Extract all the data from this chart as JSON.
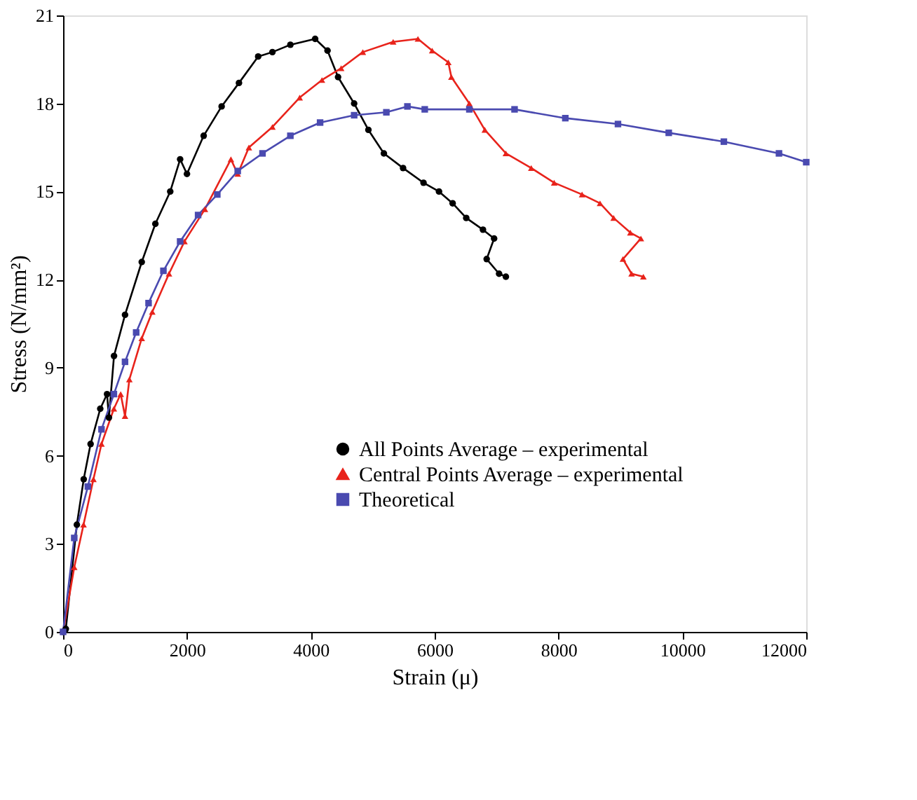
{
  "chart_data": {
    "type": "line",
    "xlabel": "Strain (μ)",
    "ylabel": "Stress (N/mm²)",
    "xlim": [
      0,
      12000
    ],
    "xticks": [
      0,
      2000,
      4000,
      6000,
      8000,
      10000,
      12000
    ],
    "ylim": [
      0,
      21
    ],
    "yticks": [
      0,
      3,
      6,
      9,
      12,
      15,
      18,
      21
    ],
    "grid": false,
    "legend": "bottom right",
    "line_style": "solid",
    "series": [
      {
        "name": "All Points Average – experimental",
        "color": "#000000",
        "marker": "circle",
        "x": [
          0,
          44,
          222,
          333,
          444,
          600,
          710,
          740,
          822,
          1000,
          1270,
          1490,
          1730,
          1890,
          2000,
          2270,
          2560,
          2840,
          3150,
          3380,
          3670,
          4070,
          4270,
          4440,
          4700,
          4930,
          5180,
          5490,
          5820,
          6070,
          6290,
          6510,
          6780,
          6960,
          6840,
          7040,
          7150
        ],
        "values": [
          0,
          0.1,
          3.65,
          5.2,
          6.4,
          7.6,
          8.1,
          7.3,
          9.4,
          10.8,
          12.6,
          13.9,
          15.0,
          16.1,
          15.6,
          16.9,
          17.9,
          18.7,
          19.6,
          19.75,
          20.0,
          20.2,
          19.8,
          18.9,
          18.0,
          17.1,
          16.3,
          15.8,
          15.3,
          15.0,
          14.6,
          14.1,
          13.7,
          13.4,
          12.7,
          12.2,
          12.1
        ]
      },
      {
        "name": "Central Points Average – experimental",
        "color": "#e8231b",
        "marker": "triangle",
        "x": [
          0,
          180,
          330,
          490,
          620,
          820,
          930,
          1000,
          1070,
          1270,
          1440,
          1710,
          1960,
          2290,
          2710,
          2820,
          3000,
          3380,
          3820,
          4180,
          4490,
          4840,
          5330,
          5730,
          5960,
          6220,
          6270,
          6560,
          6810,
          7150,
          7560,
          7930,
          8380,
          8670,
          8890,
          9160,
          9330,
          9040,
          9180,
          9370
        ],
        "values": [
          0,
          2.2,
          3.65,
          5.2,
          6.4,
          7.6,
          8.1,
          7.35,
          8.6,
          10.0,
          10.9,
          12.2,
          13.3,
          14.4,
          16.1,
          15.6,
          16.5,
          17.2,
          18.2,
          18.8,
          19.2,
          19.75,
          20.1,
          20.2,
          19.8,
          19.4,
          18.9,
          18.0,
          17.1,
          16.3,
          15.8,
          15.3,
          14.9,
          14.6,
          14.1,
          13.6,
          13.4,
          12.7,
          12.2,
          12.1
        ]
      },
      {
        "name": "Theoretical",
        "color": "#4a4ab0",
        "marker": "square",
        "x": [
          0,
          180,
          400,
          620,
          820,
          1000,
          1180,
          1380,
          1620,
          1890,
          2180,
          2490,
          2820,
          3220,
          3670,
          4150,
          4700,
          5220,
          5560,
          5840,
          6560,
          7290,
          8110,
          8960,
          9780,
          10670,
          11560,
          12000
        ],
        "values": [
          0,
          3.2,
          4.95,
          6.9,
          8.1,
          9.2,
          10.2,
          11.2,
          12.3,
          13.3,
          14.2,
          14.9,
          15.7,
          16.3,
          16.9,
          17.35,
          17.6,
          17.7,
          17.9,
          17.8,
          17.8,
          17.8,
          17.5,
          17.3,
          17.0,
          16.7,
          16.3,
          16.0
        ]
      }
    ]
  }
}
